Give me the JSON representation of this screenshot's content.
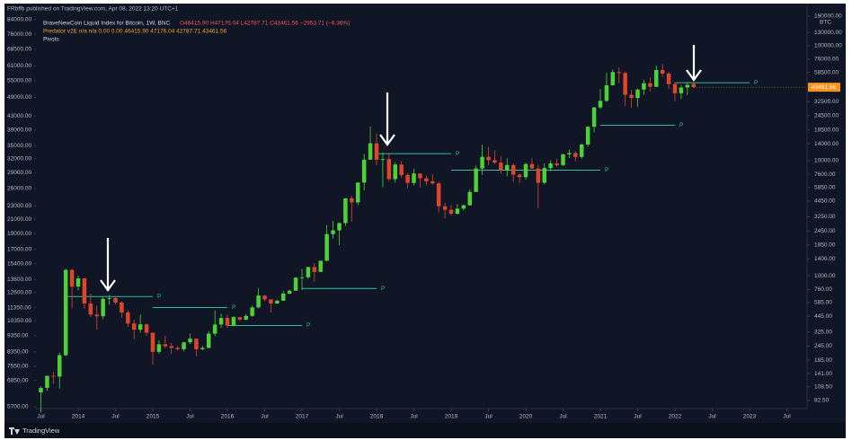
{
  "header": {
    "published": "FRbffb published on TradingView.com, Apr 08, 2022 13:20 UTC+1"
  },
  "footer": {
    "brand": "TradingView"
  },
  "chart_data": {
    "type": "candlestick",
    "title": "BraveNewCoin Liquid Index for Bitcoin, 1W, BNC",
    "ohlc_text": "O46415.90 H47176.04 L42787.71 C43461.56 −2953.71 (−6.36%)",
    "indicators": [
      "Predator v2E n/a n/a 0.00 0.00 46415.90 47176.04 42787.71 43461.56",
      "Pivots"
    ],
    "y_unit": "BTC",
    "log_scale": true,
    "up_color": "#4cd137",
    "down_color": "#e0452b",
    "last_color": "#f7931a",
    "pivot_color": "#2fbf9a",
    "x": [
      "2013-07",
      "2013-08",
      "2013-09",
      "2013-10",
      "2013-11",
      "2013-12",
      "2014-01",
      "2014-02",
      "2014-03",
      "2014-04",
      "2014-05",
      "2014-06",
      "2014-07",
      "2014-08",
      "2014-09",
      "2014-10",
      "2014-11",
      "2014-12",
      "2015-01",
      "2015-02",
      "2015-03",
      "2015-04",
      "2015-05",
      "2015-06",
      "2015-07",
      "2015-08",
      "2015-09",
      "2015-10",
      "2015-11",
      "2015-12",
      "2016-01",
      "2016-02",
      "2016-03",
      "2016-04",
      "2016-05",
      "2016-06",
      "2016-07",
      "2016-08",
      "2016-09",
      "2016-10",
      "2016-11",
      "2016-12",
      "2017-01",
      "2017-02",
      "2017-03",
      "2017-04",
      "2017-05",
      "2017-06",
      "2017-07",
      "2017-08",
      "2017-09",
      "2017-10",
      "2017-11",
      "2017-12",
      "2018-01",
      "2018-02",
      "2018-03",
      "2018-04",
      "2018-05",
      "2018-06",
      "2018-07",
      "2018-08",
      "2018-09",
      "2018-10",
      "2018-11",
      "2018-12",
      "2019-01",
      "2019-02",
      "2019-03",
      "2019-04",
      "2019-05",
      "2019-06",
      "2019-07",
      "2019-08",
      "2019-09",
      "2019-10",
      "2019-11",
      "2019-12",
      "2020-01",
      "2020-02",
      "2020-03",
      "2020-04",
      "2020-05",
      "2020-06",
      "2020-07",
      "2020-08",
      "2020-09",
      "2020-10",
      "2020-11",
      "2020-12",
      "2021-01",
      "2021-02",
      "2021-03",
      "2021-04",
      "2021-05",
      "2021-06",
      "2021-07",
      "2021-08",
      "2021-09",
      "2021-10",
      "2021-11",
      "2021-12",
      "2022-01",
      "2022-02",
      "2022-03",
      "2022-04"
    ],
    "open": [
      97,
      106,
      135,
      133,
      204,
      1125,
      805,
      950,
      575,
      460,
      445,
      630,
      640,
      585,
      480,
      385,
      340,
      378,
      320,
      218,
      254,
      244,
      236,
      230,
      264,
      284,
      230,
      236,
      314,
      377,
      430,
      369,
      437,
      416,
      448,
      531,
      673,
      624,
      573,
      608,
      700,
      742,
      963,
      970,
      1190,
      1080,
      1350,
      2300,
      2480,
      2870,
      4700,
      4340,
      6450,
      10200,
      14150,
      10200,
      10300,
      6900,
      9250,
      7500,
      6400,
      7730,
      7030,
      6620,
      6350,
      4020,
      3740,
      3460,
      3830,
      4100,
      5350,
      8550,
      10800,
      10100,
      9600,
      8300,
      9150,
      7550,
      7200,
      9350,
      8550,
      6420,
      8630,
      9450,
      9140,
      11340,
      11650,
      10780,
      13800,
      19700,
      28990,
      33100,
      45200,
      58800,
      57750,
      37300,
      35040,
      41460,
      47100,
      43800,
      61300,
      57000,
      46300,
      38500,
      43200,
      46415.9
    ],
    "high": [
      110,
      135,
      145,
      215,
      1150,
      1150,
      1000,
      960,
      700,
      550,
      650,
      680,
      650,
      600,
      500,
      415,
      460,
      385,
      320,
      275,
      300,
      260,
      245,
      267,
      315,
      285,
      245,
      330,
      500,
      470,
      460,
      445,
      440,
      465,
      550,
      780,
      680,
      625,
      620,
      740,
      760,
      975,
      1150,
      1200,
      1290,
      1350,
      2760,
      2980,
      2910,
      4750,
      4970,
      6470,
      11400,
      19800,
      17250,
      11800,
      11700,
      9700,
      9980,
      7770,
      8500,
      7760,
      7400,
      7600,
      6550,
      4300,
      4100,
      4200,
      4150,
      5600,
      9100,
      13800,
      13200,
      12300,
      10950,
      10500,
      9500,
      7750,
      9570,
      10500,
      9200,
      9450,
      10080,
      10400,
      11450,
      12470,
      12070,
      14100,
      19850,
      29300,
      41950,
      58350,
      61800,
      64850,
      59500,
      41300,
      42300,
      50500,
      52900,
      67000,
      69000,
      59000,
      48000,
      45800,
      48200,
      47176.04
    ],
    "low": [
      65,
      100,
      115,
      105,
      200,
      520,
      750,
      520,
      440,
      340,
      420,
      560,
      560,
      430,
      360,
      280,
      320,
      300,
      170,
      210,
      235,
      210,
      225,
      220,
      255,
      200,
      225,
      235,
      300,
      350,
      350,
      365,
      405,
      410,
      440,
      520,
      600,
      480,
      570,
      605,
      690,
      740,
      750,
      940,
      890,
      1080,
      1340,
      2100,
      1840,
      2700,
      2950,
      4100,
      5500,
      10200,
      9100,
      5900,
      6600,
      6450,
      7050,
      5780,
      6100,
      5880,
      6100,
      6200,
      3550,
      3150,
      3350,
      3400,
      3700,
      4060,
      5330,
      7500,
      9100,
      9400,
      7700,
      7300,
      6550,
      6450,
      6850,
      8450,
      3850,
      6200,
      8100,
      8900,
      8980,
      10530,
      9880,
      10400,
      13200,
      17600,
      28100,
      32300,
      45000,
      47000,
      30000,
      28800,
      29300,
      37300,
      39600,
      43300,
      53300,
      42000,
      32900,
      34300,
      37200,
      42787.71
    ],
    "close": [
      106,
      135,
      133,
      204,
      1125,
      805,
      950,
      575,
      460,
      445,
      630,
      640,
      585,
      480,
      385,
      340,
      378,
      320,
      218,
      254,
      244,
      236,
      230,
      264,
      284,
      230,
      236,
      314,
      377,
      430,
      369,
      437,
      416,
      448,
      531,
      673,
      624,
      573,
      608,
      700,
      742,
      963,
      970,
      1190,
      1080,
      1350,
      2300,
      2480,
      2870,
      4700,
      4340,
      6450,
      10200,
      14150,
      10200,
      10300,
      6900,
      9250,
      7500,
      6400,
      7730,
      7030,
      6620,
      6350,
      4020,
      3740,
      3460,
      3830,
      4100,
      5350,
      8550,
      10800,
      10100,
      9600,
      8300,
      9150,
      7550,
      7200,
      9350,
      8550,
      6420,
      8630,
      9450,
      9140,
      11340,
      11650,
      10780,
      13800,
      19700,
      28990,
      33100,
      45200,
      58800,
      57750,
      37300,
      35040,
      41460,
      47100,
      43800,
      61300,
      57000,
      46300,
      38500,
      43200,
      45500,
      43461.56
    ],
    "ylim": [
      82.5,
      180000
    ],
    "yticks": [
      {
        "value": 180000,
        "label": "180000.00"
      },
      {
        "value": 130000,
        "label": "130000.00"
      },
      {
        "value": 100000,
        "label": "100000.00"
      },
      {
        "value": 76000,
        "label": "76000.00"
      },
      {
        "value": 58500,
        "label": "58500.00"
      },
      {
        "value": 32500,
        "label": "32500.00"
      },
      {
        "value": 24500,
        "label": "24500.00"
      },
      {
        "value": 18500,
        "label": "18500.00"
      },
      {
        "value": 14000,
        "label": "14000.00"
      },
      {
        "value": 10000,
        "label": "10000.00"
      },
      {
        "value": 7600,
        "label": "7600.00"
      },
      {
        "value": 5850,
        "label": "5850.00"
      },
      {
        "value": 4450,
        "label": "4450.00"
      },
      {
        "value": 3250,
        "label": "3250.00"
      },
      {
        "value": 2450,
        "label": "2450.00"
      },
      {
        "value": 1850,
        "label": "1850.00"
      },
      {
        "value": 1400,
        "label": "1400.00"
      },
      {
        "value": 1000,
        "label": "1000.00"
      },
      {
        "value": 760,
        "label": "760.00"
      },
      {
        "value": 585,
        "label": "585.00"
      },
      {
        "value": 445,
        "label": "445.00"
      },
      {
        "value": 325,
        "label": "325.00"
      },
      {
        "value": 245,
        "label": "245.00"
      },
      {
        "value": 185,
        "label": "185.00"
      },
      {
        "value": 141,
        "label": "141.00"
      },
      {
        "value": 108.5,
        "label": "108.50"
      },
      {
        "value": 82.5,
        "label": "82.50"
      }
    ],
    "y2lim": [
      5700,
      84000
    ],
    "y2ticks": [
      {
        "value": 84000,
        "label": "84000.00"
      },
      {
        "value": 76000,
        "label": "76000.00"
      },
      {
        "value": 68500,
        "label": "68500.00"
      },
      {
        "value": 61000,
        "label": "61000.00"
      },
      {
        "value": 55000,
        "label": "55000.00"
      },
      {
        "value": 49000,
        "label": "49000.00"
      },
      {
        "value": 43000,
        "label": "43000.00"
      },
      {
        "value": 39000,
        "label": "39000.00"
      },
      {
        "value": 35000,
        "label": "35000.00"
      },
      {
        "value": 32000,
        "label": "32000.00"
      },
      {
        "value": 29000,
        "label": "29000.00"
      },
      {
        "value": 26000,
        "label": "26000.00"
      },
      {
        "value": 23000,
        "label": "23000.00"
      },
      {
        "value": 21000,
        "label": "21000.00"
      },
      {
        "value": 19000,
        "label": "19000.00"
      },
      {
        "value": 17000,
        "label": "17000.00"
      },
      {
        "value": 15400,
        "label": "15400.00"
      },
      {
        "value": 13800,
        "label": "13800.00"
      },
      {
        "value": 12600,
        "label": "12600.00"
      },
      {
        "value": 11350,
        "label": "11350.00"
      },
      {
        "value": 10350,
        "label": "10350.00"
      },
      {
        "value": 9350,
        "label": "9350.00"
      },
      {
        "value": 8350,
        "label": "8350.00"
      },
      {
        "value": 7550,
        "label": "7550.00"
      },
      {
        "value": 6850,
        "label": "6850.00"
      },
      {
        "value": 5700,
        "label": "5700.00"
      }
    ],
    "xticks": [
      {
        "value": "2013-07",
        "label": "Jul"
      },
      {
        "value": "2014-01",
        "label": "2014"
      },
      {
        "value": "2014-07",
        "label": "Jul"
      },
      {
        "value": "2015-01",
        "label": "2015"
      },
      {
        "value": "2015-07",
        "label": "Jul"
      },
      {
        "value": "2016-01",
        "label": "2016"
      },
      {
        "value": "2016-07",
        "label": "Jul"
      },
      {
        "value": "2017-01",
        "label": "2017"
      },
      {
        "value": "2017-07",
        "label": "Jul"
      },
      {
        "value": "2018-01",
        "label": "2018"
      },
      {
        "value": "2018-07",
        "label": "Jul"
      },
      {
        "value": "2019-01",
        "label": "2019"
      },
      {
        "value": "2019-07",
        "label": "Jul"
      },
      {
        "value": "2020-01",
        "label": "2020"
      },
      {
        "value": "2020-07",
        "label": "Jul"
      },
      {
        "value": "2021-01",
        "label": "2021"
      },
      {
        "value": "2021-07",
        "label": "Jul"
      },
      {
        "value": "2022-01",
        "label": "2022"
      },
      {
        "value": "2022-07",
        "label": "Jul"
      },
      {
        "value": "2023-01",
        "label": "2023"
      },
      {
        "value": "2023-07",
        "label": "Jul"
      }
    ],
    "pivots": [
      {
        "x0": "2013-11",
        "x1": "2015-01",
        "value": 660,
        "label": "P"
      },
      {
        "x0": "2015-01",
        "x1": "2016-01",
        "value": 530,
        "label": "P"
      },
      {
        "x0": "2016-01",
        "x1": "2017-01",
        "value": 370,
        "label": "P"
      },
      {
        "x0": "2017-01",
        "x1": "2018-01",
        "value": 775,
        "label": "P"
      },
      {
        "x0": "2018-01",
        "x1": "2019-01",
        "value": 11500,
        "label": "P"
      },
      {
        "x0": "2019-01",
        "x1": "2021-01",
        "value": 8270,
        "label": "P"
      },
      {
        "x0": "2021-01",
        "x1": "2022-01",
        "value": 20300,
        "label": "P"
      },
      {
        "x0": "2022-01",
        "x1": "2023-01",
        "value": 47500,
        "label": "P"
      }
    ]
  }
}
